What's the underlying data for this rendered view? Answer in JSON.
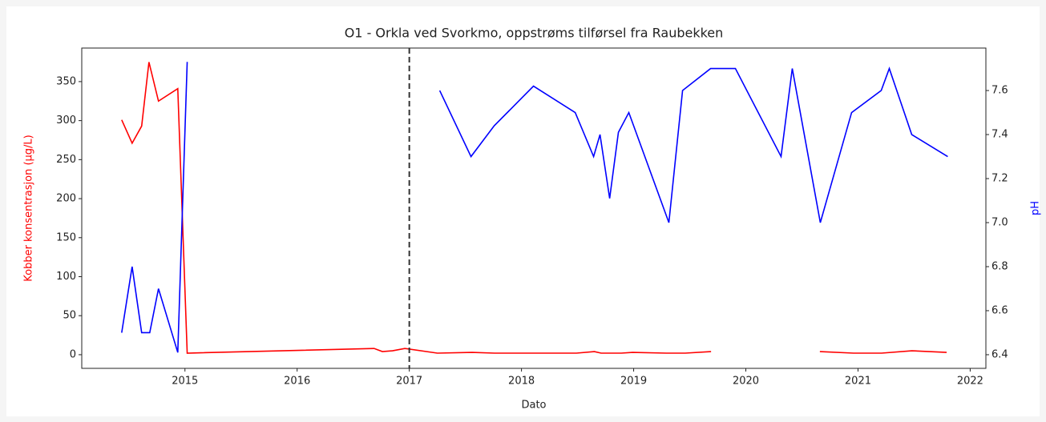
{
  "chart_data": {
    "type": "line",
    "title": "O1 - Orkla ved Svorkmo, oppstrøms tilførsel fra Raubekken",
    "x_label": "Dato",
    "y_label": "Kobber konsentrasjon (µg/L)",
    "y2_label": "pH",
    "xlim": [
      2014.08,
      2022.14
    ],
    "xticks": [
      2015,
      2016,
      2017,
      2018,
      2019,
      2020,
      2021,
      2022
    ],
    "ylim": [
      -17.5,
      393
    ],
    "yticks": [
      0,
      50,
      100,
      150,
      200,
      250,
      300,
      350
    ],
    "y2lim": [
      6.338,
      7.793
    ],
    "y2ticks": [
      6.4,
      6.6,
      6.8,
      {
        "value": 7,
        "label": "7.0"
      },
      7.2,
      7.4,
      7.6
    ],
    "vline_x": 2017,
    "series": [
      {
        "name": "Kobber",
        "color": "#ff0000",
        "x": [
          2014.436,
          2014.529,
          2014.614,
          2014.679,
          2014.764,
          2014.936,
          2015.02,
          2016.686,
          2016.76,
          2016.85,
          2016.96,
          2017.25,
          2017.56,
          2017.76,
          2018.49,
          2018.65,
          2018.71,
          2018.89,
          2018.99,
          2019.29,
          2019.46,
          2019.69,
          2020.2,
          2020.66,
          2020.96,
          2021.21,
          2021.48,
          2021.79
        ],
        "values": [
          301,
          271,
          293,
          375,
          325,
          341,
          2,
          8,
          4,
          5,
          8,
          2,
          3,
          2,
          2,
          4,
          2,
          2,
          3,
          2,
          2,
          4,
          null,
          4,
          2,
          2,
          5,
          3
        ]
      },
      {
        "name": "pH",
        "color": "#0000ff",
        "axis": "y2",
        "x": [
          2014.436,
          2014.529,
          2014.614,
          2014.686,
          2014.764,
          2014.936,
          2015.02,
          2016.0,
          2017.271,
          2017.55,
          2017.757,
          2018.107,
          2018.479,
          2018.643,
          2018.7,
          2018.786,
          2018.864,
          2018.957,
          2019.314,
          2019.436,
          2019.686,
          2019.907,
          2020.314,
          2020.414,
          2020.664,
          2020.943,
          2021.207,
          2021.279,
          2021.479,
          2021.8
        ],
        "values": [
          6.5,
          6.8,
          6.5,
          6.5,
          6.7,
          6.41,
          7.73,
          null,
          7.6,
          7.3,
          7.44,
          7.62,
          7.5,
          7.3,
          7.4,
          7.11,
          7.41,
          7.5,
          7.0,
          7.6,
          7.7,
          7.7,
          7.3,
          7.7,
          7.0,
          7.5,
          7.6,
          7.7,
          7.4,
          7.3
        ]
      }
    ]
  }
}
